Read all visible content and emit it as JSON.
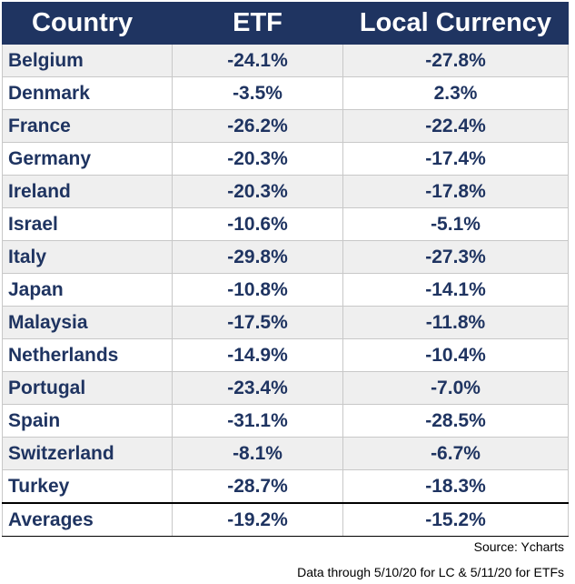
{
  "table": {
    "headers": [
      "Country",
      "ETF",
      "Local Currency"
    ],
    "rows": [
      {
        "country": "Belgium",
        "etf": "-24.1%",
        "local": "-27.8%"
      },
      {
        "country": "Denmark",
        "etf": "-3.5%",
        "local": "2.3%"
      },
      {
        "country": "France",
        "etf": "-26.2%",
        "local": "-22.4%"
      },
      {
        "country": "Germany",
        "etf": "-20.3%",
        "local": "-17.4%"
      },
      {
        "country": "Ireland",
        "etf": "-20.3%",
        "local": "-17.8%"
      },
      {
        "country": "Israel",
        "etf": "-10.6%",
        "local": "-5.1%"
      },
      {
        "country": "Italy",
        "etf": "-29.8%",
        "local": "-27.3%"
      },
      {
        "country": "Japan",
        "etf": "-10.8%",
        "local": "-14.1%"
      },
      {
        "country": "Malaysia",
        "etf": "-17.5%",
        "local": "-11.8%"
      },
      {
        "country": "Netherlands",
        "etf": "-14.9%",
        "local": "-10.4%"
      },
      {
        "country": "Portugal",
        "etf": "-23.4%",
        "local": "-7.0%"
      },
      {
        "country": "Spain",
        "etf": "-31.1%",
        "local": "-28.5%"
      },
      {
        "country": "Switzerland",
        "etf": "-8.1%",
        "local": "-6.7%"
      },
      {
        "country": "Turkey",
        "etf": "-28.7%",
        "local": "-18.3%"
      }
    ],
    "averages": {
      "label": "Averages",
      "etf": "-19.2%",
      "local": "-15.2%"
    }
  },
  "footer": {
    "source": "Source: Ycharts",
    "note": "Data through 5/10/20 for LC & 5/11/20 for ETFs"
  },
  "colors": {
    "header_bg": "#1f3461",
    "text": "#1f3461",
    "row_alt": "#efefef"
  }
}
